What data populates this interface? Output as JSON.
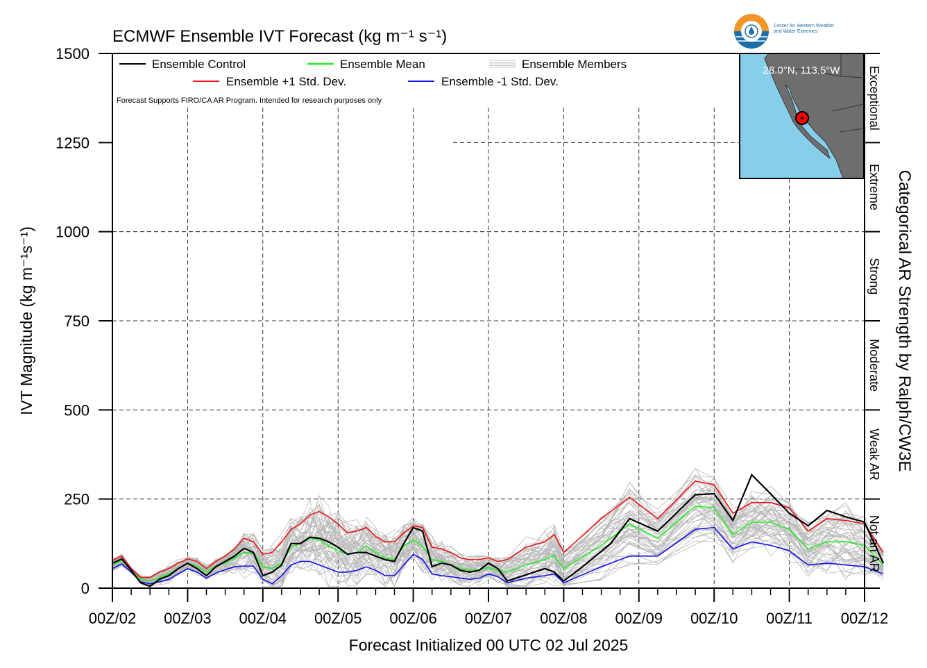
{
  "chart_data": {
    "type": "line",
    "title": "ECMWF Ensemble IVT Forecast (kg m⁻¹ s⁻¹)",
    "xlabel": "Forecast Initialized 00 UTC 02 Jul 2025",
    "ylabel": "IVT Magnitude (kg m⁻¹s⁻¹)",
    "right_label": "Categorical AR Strength by Ralph/CW3E",
    "ylim": [
      0,
      1500
    ],
    "xlim": [
      0,
      240
    ],
    "x_unit": "forecast hours",
    "y_ticks": [
      0,
      250,
      500,
      750,
      1000,
      1250,
      1500
    ],
    "x_ticks": [
      {
        "x": 0,
        "label": "00Z/02"
      },
      {
        "x": 24,
        "label": "00Z/03"
      },
      {
        "x": 48,
        "label": "00Z/04"
      },
      {
        "x": 72,
        "label": "00Z/05"
      },
      {
        "x": 96,
        "label": "00Z/06"
      },
      {
        "x": 120,
        "label": "00Z/07"
      },
      {
        "x": 144,
        "label": "00Z/08"
      },
      {
        "x": 168,
        "label": "00Z/09"
      },
      {
        "x": 192,
        "label": "00Z/10"
      },
      {
        "x": 216,
        "label": "00Z/11"
      },
      {
        "x": 240,
        "label": "00Z/12"
      }
    ],
    "categories": [
      {
        "label": "Not an AR",
        "from": 0,
        "to": 250
      },
      {
        "label": "Weak AR",
        "from": 250,
        "to": 500
      },
      {
        "label": "Moderate",
        "from": 500,
        "to": 750
      },
      {
        "label": "Strong",
        "from": 750,
        "to": 1000
      },
      {
        "label": "Extreme",
        "from": 1000,
        "to": 1250
      },
      {
        "label": "Exceptional",
        "from": 1250,
        "to": 1500
      }
    ],
    "grid": true,
    "legend_position": "top-left",
    "note": "Forecast Supports FIRO/CA AR Program. Intended for research purposes only",
    "legend": [
      {
        "label": "Ensemble Control",
        "color": "#000000",
        "style": "solid"
      },
      {
        "label": "Ensemble Mean",
        "color": "#22ee22",
        "style": "solid"
      },
      {
        "label": "Ensemble Members",
        "color": "#b0b0b0",
        "style": "multi"
      },
      {
        "label": "Ensemble +1 Std. Dev.",
        "color": "#ee1111",
        "style": "solid"
      },
      {
        "label": "Ensemble -1 Std. Dev.",
        "color": "#1111ee",
        "style": "solid"
      }
    ],
    "series": [
      {
        "name": "Ensemble Control",
        "color": "#000000",
        "points": [
          [
            0,
            70
          ],
          [
            3,
            82
          ],
          [
            6,
            50
          ],
          [
            9,
            15
          ],
          [
            12,
            5
          ],
          [
            15,
            25
          ],
          [
            18,
            35
          ],
          [
            21,
            55
          ],
          [
            24,
            70
          ],
          [
            27,
            55
          ],
          [
            30,
            35
          ],
          [
            33,
            60
          ],
          [
            36,
            75
          ],
          [
            39,
            90
          ],
          [
            42,
            112
          ],
          [
            45,
            100
          ],
          [
            48,
            35
          ],
          [
            51,
            45
          ],
          [
            54,
            65
          ],
          [
            57,
            125
          ],
          [
            60,
            125
          ],
          [
            63,
            143
          ],
          [
            66,
            140
          ],
          [
            69,
            130
          ],
          [
            72,
            115
          ],
          [
            75,
            95
          ],
          [
            78,
            100
          ],
          [
            81,
            100
          ],
          [
            84,
            90
          ],
          [
            87,
            80
          ],
          [
            90,
            75
          ],
          [
            93,
            125
          ],
          [
            96,
            170
          ],
          [
            99,
            160
          ],
          [
            102,
            60
          ],
          [
            105,
            70
          ],
          [
            108,
            65
          ],
          [
            111,
            50
          ],
          [
            114,
            45
          ],
          [
            117,
            50
          ],
          [
            120,
            70
          ],
          [
            123,
            55
          ],
          [
            126,
            20
          ],
          [
            138,
            55
          ],
          [
            141,
            45
          ],
          [
            144,
            20
          ],
          [
            150,
            60
          ],
          [
            159,
            125
          ],
          [
            165,
            195
          ],
          [
            174,
            160
          ],
          [
            186,
            262
          ],
          [
            192,
            265
          ],
          [
            198,
            190
          ],
          [
            204,
            318
          ],
          [
            210,
            265
          ],
          [
            216,
            210
          ],
          [
            222,
            175
          ],
          [
            228,
            218
          ],
          [
            234,
            200
          ],
          [
            240,
            185
          ],
          [
            246,
            70
          ]
        ]
      },
      {
        "name": "Ensemble Mean",
        "color": "#22ee22",
        "points": [
          [
            0,
            65
          ],
          [
            3,
            78
          ],
          [
            6,
            50
          ],
          [
            9,
            25
          ],
          [
            12,
            20
          ],
          [
            15,
            30
          ],
          [
            18,
            40
          ],
          [
            21,
            55
          ],
          [
            24,
            70
          ],
          [
            27,
            62
          ],
          [
            30,
            45
          ],
          [
            33,
            62
          ],
          [
            36,
            70
          ],
          [
            39,
            85
          ],
          [
            42,
            100
          ],
          [
            45,
            98
          ],
          [
            48,
            60
          ],
          [
            51,
            55
          ],
          [
            54,
            70
          ],
          [
            57,
            115
          ],
          [
            60,
            125
          ],
          [
            63,
            140
          ],
          [
            66,
            135
          ],
          [
            69,
            118
          ],
          [
            72,
            105
          ],
          [
            75,
            95
          ],
          [
            78,
            100
          ],
          [
            81,
            118
          ],
          [
            84,
            100
          ],
          [
            87,
            85
          ],
          [
            90,
            80
          ],
          [
            93,
            118
          ],
          [
            96,
            135
          ],
          [
            99,
            118
          ],
          [
            102,
            80
          ],
          [
            105,
            75
          ],
          [
            108,
            65
          ],
          [
            111,
            55
          ],
          [
            114,
            50
          ],
          [
            117,
            52
          ],
          [
            120,
            58
          ],
          [
            123,
            50
          ],
          [
            126,
            45
          ],
          [
            132,
            65
          ],
          [
            138,
            80
          ],
          [
            141,
            92
          ],
          [
            144,
            55
          ],
          [
            156,
            120
          ],
          [
            165,
            180
          ],
          [
            174,
            140
          ],
          [
            186,
            230
          ],
          [
            192,
            225
          ],
          [
            198,
            150
          ],
          [
            204,
            185
          ],
          [
            210,
            185
          ],
          [
            216,
            165
          ],
          [
            222,
            110
          ],
          [
            228,
            130
          ],
          [
            234,
            130
          ],
          [
            240,
            120
          ],
          [
            246,
            65
          ]
        ]
      },
      {
        "name": "Ensemble +1 Std. Dev.",
        "color": "#ee1111",
        "points": [
          [
            0,
            78
          ],
          [
            3,
            90
          ],
          [
            6,
            55
          ],
          [
            9,
            30
          ],
          [
            12,
            30
          ],
          [
            15,
            45
          ],
          [
            18,
            55
          ],
          [
            21,
            70
          ],
          [
            24,
            82
          ],
          [
            27,
            75
          ],
          [
            30,
            55
          ],
          [
            33,
            75
          ],
          [
            36,
            90
          ],
          [
            39,
            110
          ],
          [
            42,
            140
          ],
          [
            45,
            130
          ],
          [
            48,
            95
          ],
          [
            51,
            100
          ],
          [
            54,
            130
          ],
          [
            57,
            165
          ],
          [
            60,
            180
          ],
          [
            63,
            205
          ],
          [
            66,
            215
          ],
          [
            69,
            200
          ],
          [
            72,
            180
          ],
          [
            75,
            155
          ],
          [
            78,
            160
          ],
          [
            81,
            170
          ],
          [
            84,
            145
          ],
          [
            87,
            130
          ],
          [
            90,
            130
          ],
          [
            93,
            155
          ],
          [
            96,
            175
          ],
          [
            99,
            170
          ],
          [
            102,
            115
          ],
          [
            105,
            110
          ],
          [
            108,
            100
          ],
          [
            111,
            85
          ],
          [
            114,
            80
          ],
          [
            117,
            80
          ],
          [
            120,
            85
          ],
          [
            123,
            75
          ],
          [
            126,
            80
          ],
          [
            132,
            115
          ],
          [
            138,
            130
          ],
          [
            141,
            150
          ],
          [
            144,
            100
          ],
          [
            156,
            195
          ],
          [
            165,
            255
          ],
          [
            174,
            195
          ],
          [
            186,
            300
          ],
          [
            192,
            290
          ],
          [
            198,
            210
          ],
          [
            204,
            240
          ],
          [
            210,
            240
          ],
          [
            216,
            225
          ],
          [
            222,
            160
          ],
          [
            228,
            195
          ],
          [
            234,
            190
          ],
          [
            240,
            180
          ],
          [
            246,
            100
          ]
        ]
      },
      {
        "name": "Ensemble -1 Std. Dev.",
        "color": "#1111ee",
        "points": [
          [
            0,
            55
          ],
          [
            3,
            68
          ],
          [
            6,
            45
          ],
          [
            9,
            18
          ],
          [
            12,
            12
          ],
          [
            15,
            18
          ],
          [
            18,
            25
          ],
          [
            21,
            40
          ],
          [
            24,
            55
          ],
          [
            27,
            45
          ],
          [
            30,
            28
          ],
          [
            33,
            42
          ],
          [
            36,
            52
          ],
          [
            39,
            60
          ],
          [
            42,
            62
          ],
          [
            45,
            62
          ],
          [
            48,
            25
          ],
          [
            51,
            12
          ],
          [
            54,
            35
          ],
          [
            57,
            65
          ],
          [
            60,
            75
          ],
          [
            63,
            75
          ],
          [
            66,
            65
          ],
          [
            69,
            55
          ],
          [
            72,
            45
          ],
          [
            75,
            45
          ],
          [
            78,
            50
          ],
          [
            81,
            60
          ],
          [
            84,
            50
          ],
          [
            87,
            35
          ],
          [
            90,
            35
          ],
          [
            93,
            65
          ],
          [
            96,
            95
          ],
          [
            99,
            80
          ],
          [
            102,
            40
          ],
          [
            105,
            35
          ],
          [
            108,
            32
          ],
          [
            111,
            28
          ],
          [
            114,
            25
          ],
          [
            117,
            28
          ],
          [
            120,
            40
          ],
          [
            123,
            32
          ],
          [
            126,
            15
          ],
          [
            132,
            28
          ],
          [
            138,
            35
          ],
          [
            141,
            40
          ],
          [
            144,
            15
          ],
          [
            156,
            60
          ],
          [
            165,
            90
          ],
          [
            174,
            90
          ],
          [
            186,
            165
          ],
          [
            192,
            170
          ],
          [
            198,
            110
          ],
          [
            204,
            130
          ],
          [
            210,
            120
          ],
          [
            216,
            105
          ],
          [
            222,
            65
          ],
          [
            228,
            70
          ],
          [
            234,
            65
          ],
          [
            240,
            60
          ],
          [
            246,
            40
          ]
        ]
      }
    ]
  },
  "map_inset": {
    "location_label": "28.0°N, 113.5°W",
    "ocean_color": "#87ceeb",
    "land_color": "#6e6e6e",
    "marker_color": "#ff0000"
  },
  "logo": {
    "line1": "Center for Western Weather",
    "line2": "and Water Extremes",
    "ring_color_top": "#f0962a",
    "ring_color_bottom": "#1b6ea8"
  }
}
